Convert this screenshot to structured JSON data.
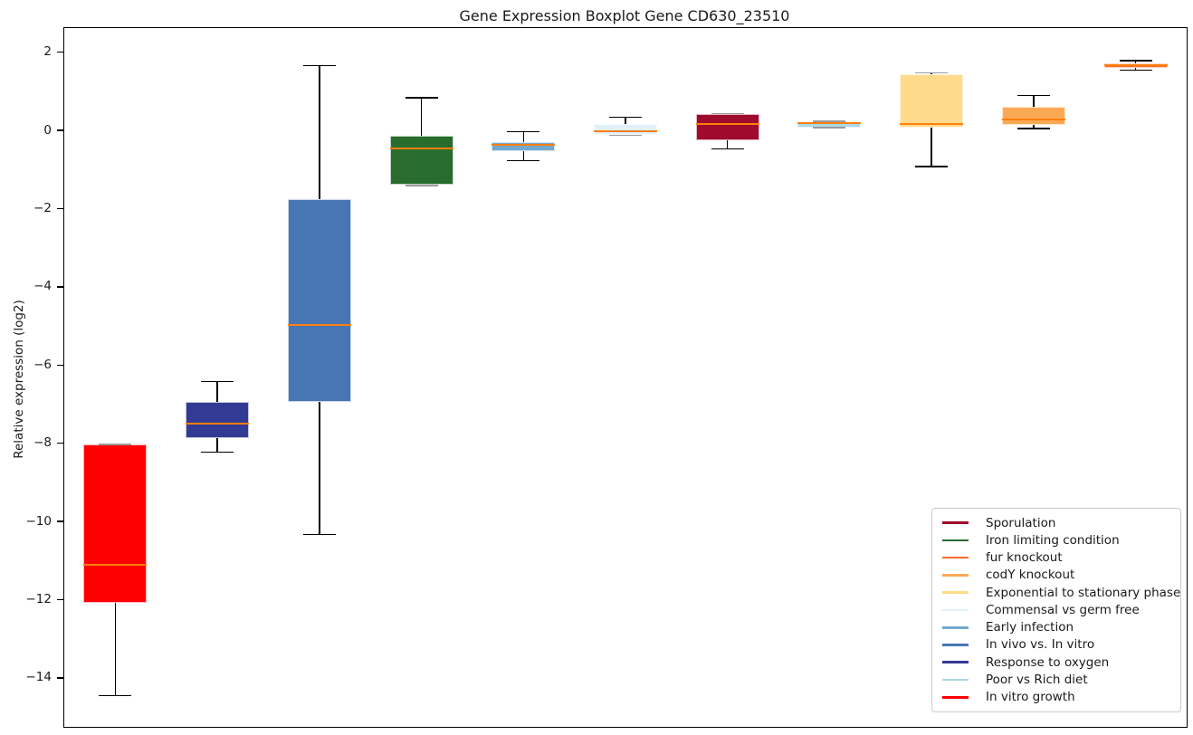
{
  "chart_data": {
    "type": "boxplot",
    "title": "Gene Expression Boxplot Gene CD630_23510",
    "xlabel": "",
    "ylabel": "Relative expression (log2)",
    "ylim": [
      -15.25,
      2.62
    ],
    "yticks": [
      2,
      0,
      -2,
      -4,
      -6,
      -8,
      -10,
      -12,
      -14
    ],
    "grid": false,
    "median_color": "#ff7f0e",
    "whisker_color": "#000000",
    "boxes": [
      {
        "label": "In vitro growth",
        "color": "#ff0000",
        "whisker_low": -14.45,
        "q1": -12.07,
        "median": -11.1,
        "q3": -8.03,
        "whisker_high": -8.03
      },
      {
        "label": "Response to oxygen",
        "color": "#333a94",
        "whisker_low": -8.23,
        "q1": -7.87,
        "median": -7.5,
        "q3": -6.95,
        "whisker_high": -6.42
      },
      {
        "label": "In vivo vs. In vitro",
        "color": "#4876b4",
        "whisker_low": -10.33,
        "q1": -6.95,
        "median": -4.98,
        "q3": -1.76,
        "whisker_high": 1.66
      },
      {
        "label": "Iron limiting condition",
        "color": "#286c2e",
        "whisker_low": -1.41,
        "q1": -1.38,
        "median": -0.46,
        "q3": -0.14,
        "whisker_high": 0.84
      },
      {
        "label": "Early infection",
        "color": "#74a9cf",
        "whisker_low": -0.77,
        "q1": -0.53,
        "median": -0.36,
        "q3": -0.29,
        "whisker_high": -0.03
      },
      {
        "label": "Commensal vs germ free",
        "color": "#e1f1fa",
        "whisker_low": -0.13,
        "q1": -0.12,
        "median": -0.02,
        "q3": 0.17,
        "whisker_high": 0.34
      },
      {
        "label": "Sporulation",
        "color": "#a00a2d",
        "whisker_low": -0.47,
        "q1": -0.24,
        "median": 0.16,
        "q3": 0.42,
        "whisker_high": 0.43
      },
      {
        "label": "Poor vs Rich diet",
        "color": "#add8e6",
        "whisker_low": 0.07,
        "q1": 0.08,
        "median": 0.18,
        "q3": 0.22,
        "whisker_high": 0.24
      },
      {
        "label": "Exponential to stationary phase",
        "color": "#ffda8a",
        "whisker_low": -0.92,
        "q1": 0.07,
        "median": 0.16,
        "q3": 1.45,
        "whisker_high": 1.48
      },
      {
        "label": "codY knockout",
        "color": "#fca955",
        "whisker_low": 0.05,
        "q1": 0.15,
        "median": 0.28,
        "q3": 0.6,
        "whisker_high": 0.9
      },
      {
        "label": "fur knockout",
        "color": "#fd6a33",
        "whisker_low": 1.55,
        "q1": 1.6,
        "median": 1.67,
        "q3": 1.72,
        "whisker_high": 1.79
      }
    ],
    "legend": {
      "position": "lower right",
      "labels": [
        "Sporulation",
        "Iron limiting condition",
        "fur knockout",
        "codY knockout",
        "Exponential to stationary phase",
        "Commensal vs germ free",
        "Early infection",
        "In vivo vs. In vitro",
        "Response to oxygen",
        "Poor vs Rich diet",
        "In vitro growth"
      ]
    },
    "colors": {
      "axis": "#000000",
      "text": "#1a1a1a",
      "legend_border": "#cccccc"
    }
  }
}
